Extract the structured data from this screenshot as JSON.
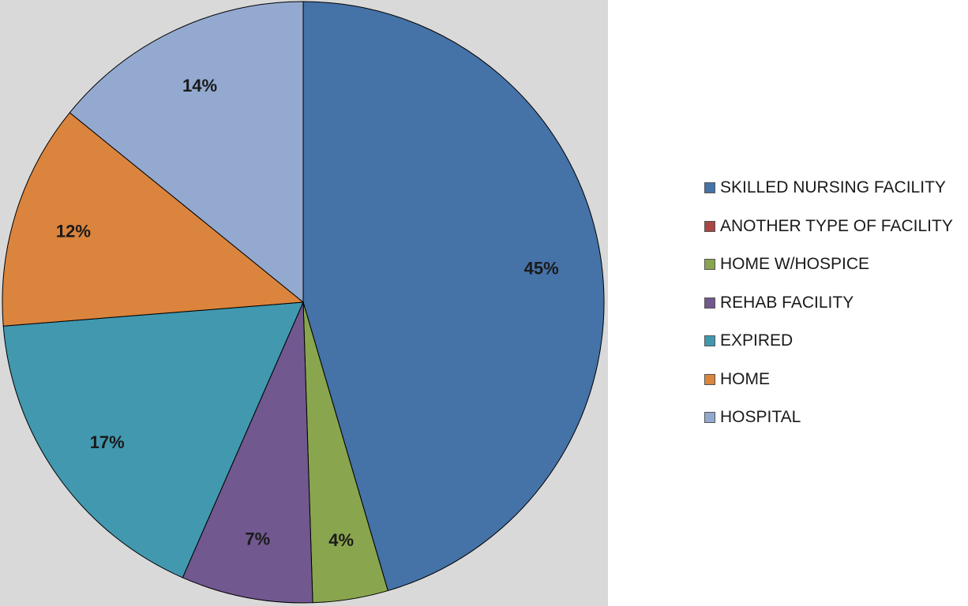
{
  "chart_data": {
    "type": "pie",
    "categories": [
      "SKILLED NURSING FACILITY",
      "ANOTHER TYPE OF FACILITY",
      "HOME W/HOSPICE",
      "REHAB FACILITY",
      "EXPIRED",
      "HOME",
      "HOSPITAL"
    ],
    "values": [
      45,
      0,
      4,
      7,
      17,
      12,
      14
    ],
    "labels": [
      "45%",
      "",
      "4%",
      "7%",
      "17%",
      "12%",
      "14%"
    ],
    "colors": [
      "#4572a7",
      "#aa4643",
      "#89a54e",
      "#71588f",
      "#4198af",
      "#db843d",
      "#93a9cf"
    ],
    "legend_position": "right",
    "title": ""
  }
}
